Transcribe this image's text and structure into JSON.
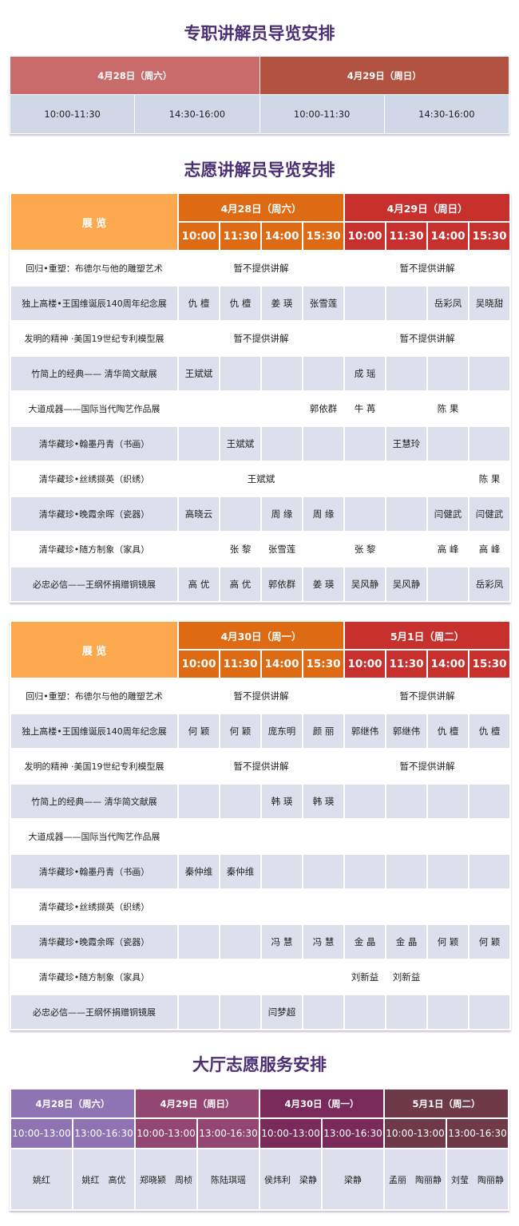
{
  "titles": {
    "staff": "专职讲解员导览安排",
    "volunteer": "志愿讲解员导览安排",
    "hall": "大厅志愿服务安排"
  },
  "colors": {
    "title": "#4b2f74",
    "day1_staff": "#c96b6b",
    "day2_staff": "#b25240",
    "exhibit_header": "#fca84f",
    "day_a": "#df6a14",
    "day_b": "#c8302e",
    "row_grey": "#dde0ec",
    "divider": "#8a7aa0",
    "hall_days": [
      "#8f74b4",
      "#934672",
      "#7a2a5a",
      "#6e3a47"
    ]
  },
  "staff_table": {
    "days": [
      "4月28日（周六）",
      "4月29日（周日）"
    ],
    "slots": [
      "10:00-11:30",
      "14:30-16:00",
      "10:00-11:30",
      "14:30-16:00"
    ]
  },
  "volunteer_tables": [
    {
      "exhibit_header": "展 览",
      "days": [
        "4月28日（周六）",
        "4月29日（周日）"
      ],
      "times": [
        "10:00",
        "11:30",
        "14:00",
        "15:30",
        "10:00",
        "11:30",
        "14:00",
        "15:30"
      ],
      "rows": [
        {
          "exhibit": "回归•重塑：布德尔与他的雕塑艺术",
          "cells": [
            {
              "t": "暂不提供讲解",
              "s": 4
            },
            {
              "t": "暂不提供讲解",
              "s": 4
            }
          ]
        },
        {
          "exhibit": "独上高楼•王国维诞辰140周年纪念展",
          "cells": [
            "仇 檀",
            "仇 檀",
            "姜 瑛",
            "张雪莲",
            "",
            "",
            "岳彩凤",
            "吴晓甜"
          ]
        },
        {
          "exhibit": "发明的精神 ·美国19世纪专利模型展",
          "cells": [
            {
              "t": "暂不提供讲解",
              "s": 4
            },
            {
              "t": "暂不提供讲解",
              "s": 4
            }
          ]
        },
        {
          "exhibit": "竹简上的经典—— 清华简文献展",
          "cells": [
            "王斌斌",
            "",
            "",
            "",
            "成 瑶",
            "",
            "",
            ""
          ]
        },
        {
          "exhibit": "大道成器——国际当代陶艺作品展",
          "cells": [
            "",
            "",
            "",
            "郭依群",
            "牛 苒",
            "",
            "陈 果",
            ""
          ]
        },
        {
          "exhibit": "清华藏珍•翰墨丹青（书画）",
          "cells": [
            "",
            "王斌斌",
            "",
            "",
            "",
            "王慧玲",
            "",
            ""
          ]
        },
        {
          "exhibit": "清华藏珍•丝绣撷英（织绣）",
          "cells": [
            {
              "t": "王斌斌",
              "s": 4
            },
            "",
            "",
            "",
            "陈 果"
          ]
        },
        {
          "exhibit": "清华藏珍•晚霞余晖（瓷器）",
          "cells": [
            "高晓云",
            "",
            "周 缘",
            "周 缘",
            "",
            "",
            "闫健武",
            "闫健武"
          ]
        },
        {
          "exhibit": "清华藏珍•随方制象（家具）",
          "cells": [
            "",
            "张 黎",
            "张雪莲",
            "",
            "张 黎",
            "",
            "高 峰",
            "高 峰"
          ]
        },
        {
          "exhibit": "必忠必信——王纲怀捐赠铜镜展",
          "cells": [
            "高 优",
            "高 优",
            "郭依群",
            "姜 瑛",
            "吴风静",
            "吴风静",
            "",
            "岳彩凤"
          ]
        }
      ]
    },
    {
      "exhibit_header": "展 览",
      "days": [
        "4月30日（周一）",
        "5月1日（周二）"
      ],
      "times": [
        "10:00",
        "11:30",
        "14:00",
        "15:30",
        "10:00",
        "11:30",
        "14:00",
        "15:30"
      ],
      "rows": [
        {
          "exhibit": "回归•重塑：布德尔与他的雕塑艺术",
          "cells": [
            {
              "t": "暂不提供讲解",
              "s": 4
            },
            {
              "t": "暂不提供讲解",
              "s": 4
            }
          ]
        },
        {
          "exhibit": "独上高楼•王国维诞辰140周年纪念展",
          "cells": [
            "何 颖",
            "何 颖",
            "庞东明",
            "颜 丽",
            "郭继伟",
            "郭继伟",
            "仇 檀",
            "仇 檀"
          ]
        },
        {
          "exhibit": "发明的精神 ·美国19世纪专利模型展",
          "cells": [
            {
              "t": "暂不提供讲解",
              "s": 4
            },
            {
              "t": "暂不提供讲解",
              "s": 4
            }
          ]
        },
        {
          "exhibit": "竹简上的经典—— 清华简文献展",
          "cells": [
            "",
            "",
            "韩 瑛",
            "韩 瑛",
            "",
            "",
            "",
            ""
          ]
        },
        {
          "exhibit": "大道成器——国际当代陶艺作品展",
          "cells": [
            "",
            "",
            "",
            "",
            "",
            "",
            "",
            ""
          ]
        },
        {
          "exhibit": "清华藏珍•翰墨丹青（书画）",
          "cells": [
            "秦仲维",
            "秦仲维",
            "",
            "",
            "",
            "",
            "",
            ""
          ]
        },
        {
          "exhibit": "清华藏珍•丝绣撷英（织绣）",
          "cells": [
            "",
            "",
            "",
            "",
            "",
            "",
            "",
            ""
          ]
        },
        {
          "exhibit": "清华藏珍•晚霞余晖（瓷器）",
          "cells": [
            "",
            "",
            "冯 慧",
            "冯 慧",
            "金 晶",
            "金 晶",
            "何 颖",
            "何 颖"
          ]
        },
        {
          "exhibit": "清华藏珍•随方制象（家具）",
          "cells": [
            "",
            "",
            "",
            "",
            "刘新益",
            "刘新益",
            "",
            ""
          ]
        },
        {
          "exhibit": "必忠必信——王纲怀捐赠铜镜展",
          "cells": [
            "",
            "",
            "闫梦超",
            "",
            "",
            "",
            "",
            ""
          ]
        }
      ]
    }
  ],
  "hall_table": {
    "days": [
      "4月28日（周六）",
      "4月29日（周日）",
      "4月30日（周一）",
      "5月1日（周二）"
    ],
    "slots": [
      "10:00-13:00",
      "13:00-16:30",
      "10:00-13:00",
      "13:00-16:30",
      "10:00-13:00",
      "13:00-16:30",
      "10:00-13:00",
      "13:00-16:30"
    ],
    "names": [
      "姚红",
      "姚红　高优",
      "郑晓颍　周桢",
      "陈陆琪瑶",
      "侯炜利　梁静",
      "梁静",
      "孟丽　陶丽静",
      "刘莹　陶丽静"
    ]
  }
}
